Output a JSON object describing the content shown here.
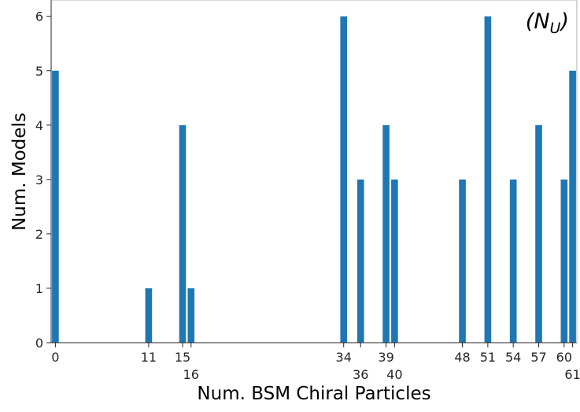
{
  "chart_data": {
    "type": "bar",
    "title": "",
    "xlabel": "Num. BSM Chiral Particles",
    "ylabel": "Num. Models",
    "annotation": "(N_U)",
    "annotation_parts": {
      "open": "(",
      "base": "N",
      "sub": "U",
      "close": ")"
    },
    "x": [
      0,
      11,
      15,
      16,
      34,
      36,
      39,
      40,
      48,
      51,
      54,
      57,
      60,
      61
    ],
    "values": [
      5,
      1,
      4,
      1,
      6,
      3,
      4,
      3,
      3,
      6,
      3,
      4,
      3,
      5
    ],
    "xticks_upper": [
      "0",
      "11",
      "15",
      "34",
      "39",
      "48",
      "51",
      "54",
      "57",
      "60"
    ],
    "xticks_upper_values": [
      0,
      11,
      15,
      34,
      39,
      48,
      51,
      54,
      57,
      60
    ],
    "xticks_lower": [
      "16",
      "36",
      "40",
      "61"
    ],
    "xticks_lower_values": [
      16,
      36,
      40,
      61
    ],
    "yticks": [
      "0",
      "1",
      "2",
      "3",
      "4",
      "5",
      "6"
    ],
    "yticks_values": [
      0,
      1,
      2,
      3,
      4,
      5,
      6
    ],
    "xlim": [
      -0.5,
      61.5
    ],
    "ylim": [
      0,
      6.3
    ],
    "grid": false,
    "legend": "none",
    "bar_color": "#1f77b4"
  }
}
